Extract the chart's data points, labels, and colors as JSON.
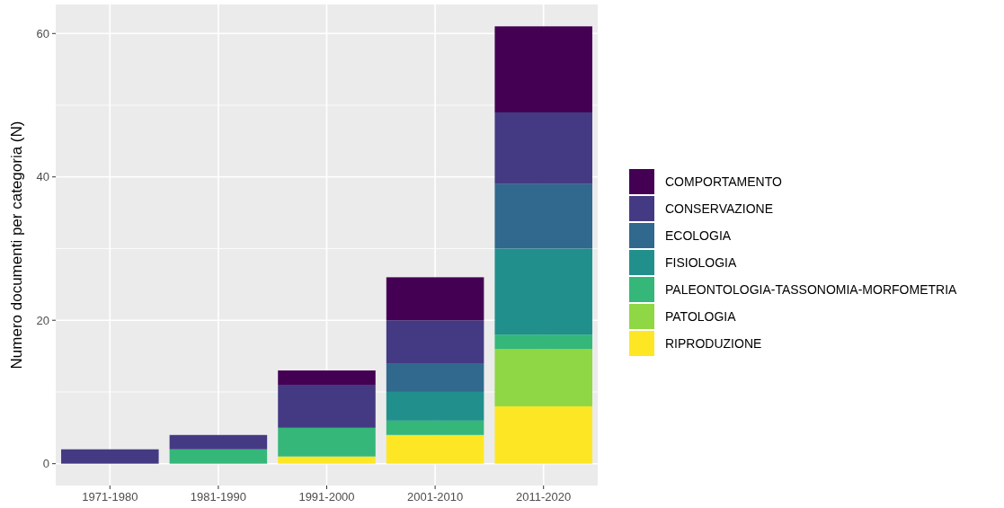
{
  "chart_data": {
    "type": "bar",
    "stacked": true,
    "ylabel": "Numero documenti per categoria (N)",
    "categories": [
      "1971-1980",
      "1981-1990",
      "1991-2000",
      "2001-2010",
      "2011-2020"
    ],
    "series": [
      {
        "name": "RIPRODUZIONE",
        "color": "#fde725",
        "values": [
          0,
          0,
          1,
          4,
          8
        ]
      },
      {
        "name": "PATOLOGIA",
        "color": "#8fd744",
        "values": [
          0,
          0,
          0,
          0,
          8
        ]
      },
      {
        "name": "PALEONTOLOGIA-TASSONOMIA-MORFOMETRIA",
        "color": "#35b779",
        "values": [
          0,
          2,
          4,
          2,
          2
        ]
      },
      {
        "name": "FISIOLOGIA",
        "color": "#21908c",
        "values": [
          0,
          0,
          0,
          4,
          12
        ]
      },
      {
        "name": "ECOLOGIA",
        "color": "#31688e",
        "values": [
          0,
          0,
          0,
          4,
          9
        ]
      },
      {
        "name": "CONSERVAZIONE",
        "color": "#443a83",
        "values": [
          2,
          2,
          6,
          6,
          10
        ]
      },
      {
        "name": "COMPORTAMENTO",
        "color": "#440154",
        "values": [
          0,
          0,
          2,
          6,
          12
        ]
      }
    ],
    "ylim": [
      -3.05,
      64.05
    ],
    "yticks": [
      0,
      20,
      40,
      60
    ],
    "grid": true,
    "legend": "right"
  }
}
